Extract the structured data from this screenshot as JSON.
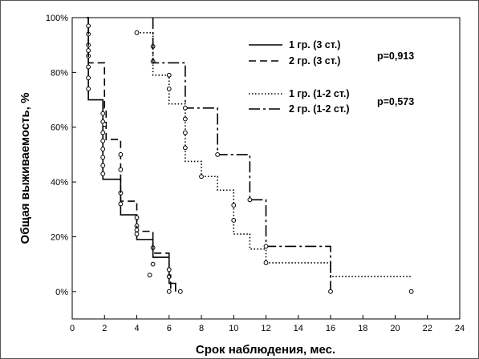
{
  "chart_data": {
    "type": "line",
    "xlabel": "Срок наблюдения, мес.",
    "ylabel": "Общая выживаемость, %",
    "xlim": [
      0,
      24
    ],
    "ylim": [
      -0.1,
      1.0
    ],
    "x_ticks": [
      0,
      2,
      4,
      6,
      8,
      10,
      12,
      14,
      16,
      18,
      20,
      22,
      24
    ],
    "y_ticks": [
      0,
      0.2,
      0.4,
      0.6,
      0.8,
      1.0
    ],
    "y_tick_labels": [
      "0%",
      "20%",
      "40%",
      "60%",
      "80%",
      "100%"
    ],
    "grid": false,
    "legend_position": "top-right",
    "series": [
      {
        "name": "1 гр. (3 ст.)",
        "style": "solid",
        "steps": [
          [
            0.9,
            1.0
          ],
          [
            1.0,
            0.7
          ],
          [
            1.9,
            0.41
          ],
          [
            3.0,
            0.28
          ],
          [
            4.0,
            0.19
          ],
          [
            5.0,
            0.125
          ],
          [
            6.0,
            0.03
          ],
          [
            6.4,
            0.0
          ]
        ],
        "censored": [
          [
            1.0,
            0.97
          ],
          [
            1.0,
            0.94
          ],
          [
            1.0,
            0.9
          ],
          [
            1.0,
            0.86
          ],
          [
            1.0,
            0.82
          ],
          [
            1.0,
            0.78
          ],
          [
            1.0,
            0.74
          ],
          [
            1.9,
            0.65
          ],
          [
            1.9,
            0.62
          ],
          [
            1.9,
            0.58
          ],
          [
            1.9,
            0.55
          ],
          [
            1.9,
            0.52
          ],
          [
            1.9,
            0.49
          ],
          [
            1.9,
            0.46
          ],
          [
            1.9,
            0.43
          ],
          [
            3.0,
            0.36
          ],
          [
            3.0,
            0.32
          ],
          [
            4.0,
            0.24
          ],
          [
            4.0,
            0.21
          ],
          [
            5.0,
            0.16
          ],
          [
            6.0,
            0.08
          ],
          [
            6.0,
            0.055
          ],
          [
            6.0,
            0.0
          ],
          [
            6.7,
            0.0
          ]
        ]
      },
      {
        "name": "2 гр. (3 ст.)",
        "style": "dashed",
        "steps": [
          [
            0.9,
            1.0
          ],
          [
            1.0,
            0.835
          ],
          [
            2.0,
            0.67
          ],
          [
            2.1,
            0.555
          ],
          [
            3.0,
            0.33
          ],
          [
            3.5,
            0.33
          ],
          [
            4.0,
            0.22
          ],
          [
            5.0,
            0.14
          ],
          [
            6.0,
            0.06
          ],
          [
            6.1,
            0.0
          ]
        ],
        "censored": [
          [
            1.0,
            0.88
          ],
          [
            2.0,
            0.61
          ],
          [
            3.0,
            0.5
          ],
          [
            3.0,
            0.445
          ],
          [
            4.0,
            0.27
          ],
          [
            4.0,
            0.225
          ],
          [
            5.0,
            0.1
          ],
          [
            4.8,
            0.06
          ]
        ]
      },
      {
        "name": "1 гр. (1-2 ст.)",
        "style": "dotted",
        "steps": [
          [
            4.0,
            0.945
          ],
          [
            5.0,
            0.79
          ],
          [
            6.0,
            0.685
          ],
          [
            7.0,
            0.475
          ],
          [
            8.0,
            0.42
          ],
          [
            9.0,
            0.37
          ],
          [
            10.0,
            0.21
          ],
          [
            11.0,
            0.155
          ],
          [
            12.0,
            0.105
          ],
          [
            16.0,
            0.055
          ],
          [
            21.0,
            0.055
          ]
        ],
        "censored": [
          [
            4.0,
            0.945
          ],
          [
            5.0,
            0.895
          ],
          [
            5.0,
            0.84
          ],
          [
            6.0,
            0.79
          ],
          [
            6.0,
            0.74
          ],
          [
            7.0,
            0.63
          ],
          [
            7.0,
            0.58
          ],
          [
            7.0,
            0.525
          ],
          [
            8.0,
            0.42
          ],
          [
            10.0,
            0.315
          ],
          [
            10.0,
            0.26
          ],
          [
            12.0,
            0.105
          ],
          [
            21.0,
            0.0
          ]
        ]
      },
      {
        "name": "2 гр. (1-2 ст.)",
        "style": "dashdot",
        "steps": [
          [
            5.0,
            1.0
          ],
          [
            5.0,
            0.835
          ],
          [
            7.0,
            0.67
          ],
          [
            9.0,
            0.5
          ],
          [
            11.0,
            0.335
          ],
          [
            11.5,
            0.335
          ],
          [
            12.0,
            0.165
          ],
          [
            16.0,
            0.0
          ]
        ],
        "censored": [
          [
            7.0,
            0.67
          ],
          [
            9.0,
            0.5
          ],
          [
            11.0,
            0.335
          ],
          [
            12.0,
            0.165
          ],
          [
            16.0,
            0.0
          ]
        ]
      }
    ],
    "annotations": [
      "p=0,913",
      "p=0,573"
    ]
  }
}
